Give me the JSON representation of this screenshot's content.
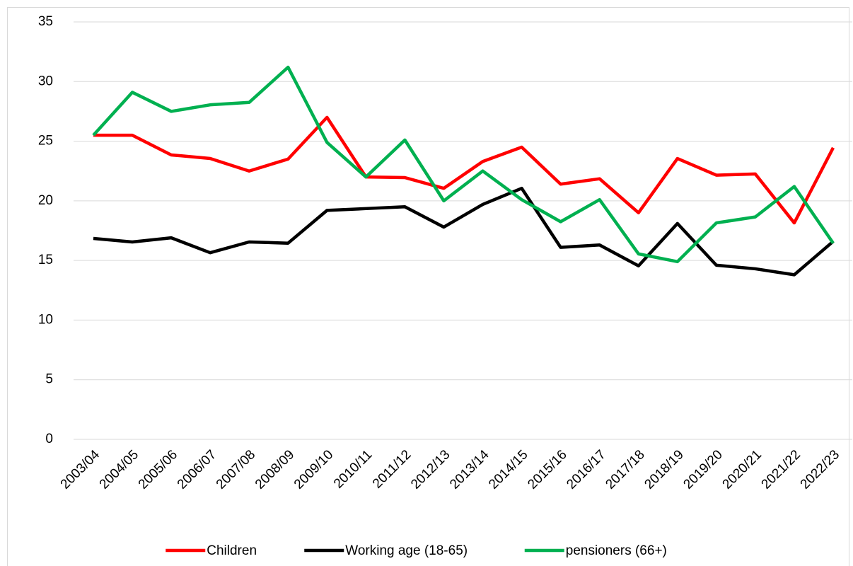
{
  "chart_data": {
    "type": "line",
    "categories": [
      "2003/04",
      "2004/05",
      "2005/06",
      "2006/07",
      "2007/08",
      "2008/09",
      "2009/10",
      "2010/11",
      "2011/12",
      "2012/13",
      "2013/14",
      "2014/15",
      "2015/16",
      "2016/17",
      "2017/18",
      "2018/19",
      "2019/20",
      "2020/21",
      "2021/22",
      "2022/23"
    ],
    "series": [
      {
        "name": "Children",
        "color": "#ff0000",
        "values": [
          25.5,
          25.5,
          23.85,
          23.55,
          22.5,
          23.5,
          27.0,
          22.0,
          21.95,
          21.05,
          23.3,
          24.5,
          21.4,
          21.85,
          19.0,
          23.55,
          22.15,
          22.25,
          18.15,
          24.45
        ]
      },
      {
        "name": "Working age (18-65)",
        "color": "#000000",
        "values": [
          16.85,
          16.55,
          16.9,
          15.65,
          16.55,
          16.45,
          19.2,
          19.35,
          19.5,
          17.8,
          19.7,
          21.05,
          16.1,
          16.3,
          14.55,
          18.1,
          14.6,
          14.3,
          13.8,
          16.6
        ]
      },
      {
        "name": "pensioners (66+)",
        "color": "#00b050",
        "values": [
          25.5,
          29.1,
          27.5,
          28.05,
          28.25,
          31.2,
          24.9,
          22.0,
          25.1,
          20.0,
          22.5,
          20.1,
          18.25,
          20.1,
          15.55,
          14.9,
          18.15,
          18.65,
          21.2,
          16.45
        ]
      }
    ],
    "ylim": [
      0,
      35
    ],
    "yticks": [
      0,
      5,
      10,
      15,
      20,
      25,
      30,
      35
    ],
    "grid": true,
    "legend": "bottom"
  }
}
